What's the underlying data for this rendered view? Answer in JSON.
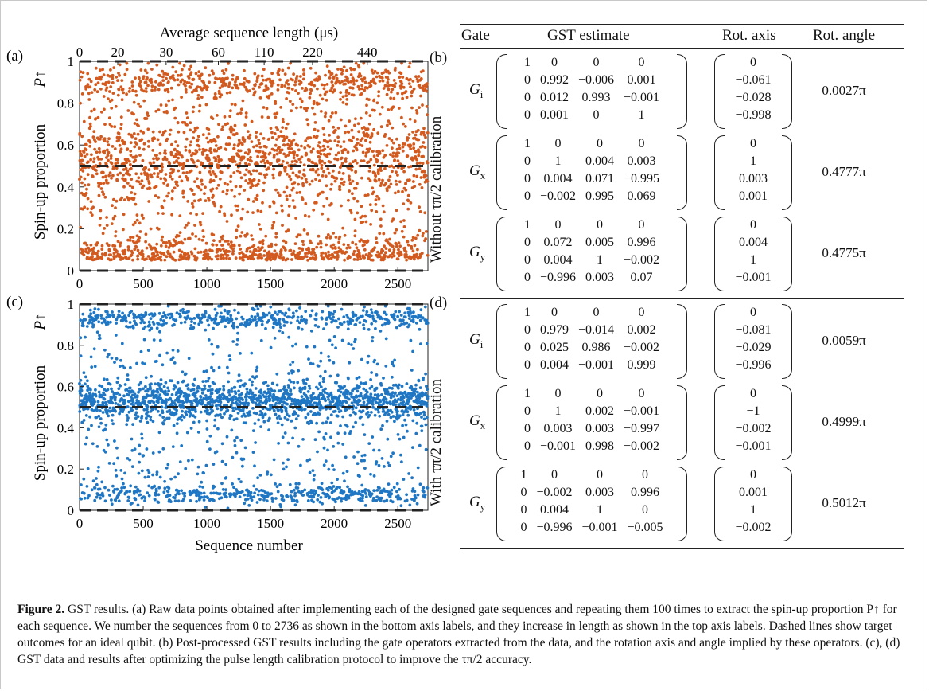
{
  "chart_data": [
    {
      "type": "scatter",
      "panel": "(a)",
      "xlabel_top": "Average sequence length (μs)",
      "top_ticks": [
        "0",
        "20",
        "30",
        "60",
        "110",
        "220",
        "440"
      ],
      "ylabel": "Spin-up proportion",
      "ylabel_symbol": "P↑",
      "xlim": [
        0,
        2736
      ],
      "ylim": [
        0,
        1
      ],
      "x_ticks": [
        0,
        500,
        1000,
        1500,
        2000,
        2500
      ],
      "y_ticks": [
        0,
        0.2,
        0.4,
        0.6,
        0.8,
        1
      ],
      "target_lines": [
        0,
        0.5,
        1
      ],
      "color": "#d35a1f",
      "n_points": 2736
    },
    {
      "type": "scatter",
      "panel": "(c)",
      "xlabel": "Sequence number",
      "ylabel": "Spin-up proportion",
      "ylabel_symbol": "P↑",
      "xlim": [
        0,
        2736
      ],
      "ylim": [
        0,
        1
      ],
      "x_ticks": [
        0,
        500,
        1000,
        1500,
        2000,
        2500
      ],
      "y_ticks": [
        0,
        0.2,
        0.4,
        0.6,
        0.8,
        1
      ],
      "target_lines": [
        0,
        0.5,
        1
      ],
      "color": "#1f77c4",
      "n_points": 2736
    }
  ],
  "gst": {
    "headers": {
      "gate": "Gate",
      "estimate": "GST estimate",
      "axis": "Rot. axis",
      "angle": "Rot. angle"
    },
    "panel_b": "(b)",
    "panel_d": "(d)",
    "side_b": "Without τπ/2 calibration",
    "side_d": "With τπ/2 calibration",
    "without": [
      {
        "name": "G",
        "sub": "i",
        "matrix": [
          [
            "1",
            "0",
            "0",
            "0"
          ],
          [
            "0",
            "0.992",
            "−0.006",
            "0.001"
          ],
          [
            "0",
            "0.012",
            "0.993",
            "−0.001"
          ],
          [
            "0",
            "0.001",
            "0",
            "1"
          ]
        ],
        "axis": [
          "0",
          "−0.061",
          "−0.028",
          "−0.998"
        ],
        "angle": "0.0027π"
      },
      {
        "name": "G",
        "sub": "x",
        "matrix": [
          [
            "1",
            "0",
            "0",
            "0"
          ],
          [
            "0",
            "1",
            "0.004",
            "0.003"
          ],
          [
            "0",
            "0.004",
            "0.071",
            "−0.995"
          ],
          [
            "0",
            "−0.002",
            "0.995",
            "0.069"
          ]
        ],
        "axis": [
          "0",
          "1",
          "0.003",
          "0.001"
        ],
        "angle": "0.4777π"
      },
      {
        "name": "G",
        "sub": "y",
        "matrix": [
          [
            "1",
            "0",
            "0",
            "0"
          ],
          [
            "0",
            "0.072",
            "0.005",
            "0.996"
          ],
          [
            "0",
            "0.004",
            "1",
            "−0.002"
          ],
          [
            "0",
            "−0.996",
            "0.003",
            "0.07"
          ]
        ],
        "axis": [
          "0",
          "0.004",
          "1",
          "−0.001"
        ],
        "angle": "0.4775π"
      }
    ],
    "with": [
      {
        "name": "G",
        "sub": "i",
        "matrix": [
          [
            "1",
            "0",
            "0",
            "0"
          ],
          [
            "0",
            "0.979",
            "−0.014",
            "0.002"
          ],
          [
            "0",
            "0.025",
            "0.986",
            "−0.002"
          ],
          [
            "0",
            "0.004",
            "−0.001",
            "0.999"
          ]
        ],
        "axis": [
          "0",
          "−0.081",
          "−0.029",
          "−0.996"
        ],
        "angle": "0.0059π"
      },
      {
        "name": "G",
        "sub": "x",
        "matrix": [
          [
            "1",
            "0",
            "0",
            "0"
          ],
          [
            "0",
            "1",
            "0.002",
            "−0.001"
          ],
          [
            "0",
            "0.003",
            "0.003",
            "−0.997"
          ],
          [
            "0",
            "−0.001",
            "0.998",
            "−0.002"
          ]
        ],
        "axis": [
          "0",
          "−1",
          "−0.002",
          "−0.001"
        ],
        "angle": "0.4999π"
      },
      {
        "name": "G",
        "sub": "y",
        "matrix": [
          [
            "1",
            "0",
            "0",
            "0"
          ],
          [
            "0",
            "−0.002",
            "0.003",
            "0.996"
          ],
          [
            "0",
            "0.004",
            "1",
            "0"
          ],
          [
            "0",
            "−0.996",
            "−0.001",
            "−0.005"
          ]
        ],
        "axis": [
          "0",
          "0.001",
          "1",
          "−0.002"
        ],
        "angle": "0.5012π"
      }
    ]
  },
  "caption": {
    "label": "Figure 2.",
    "text": " GST results. (a) Raw data points obtained after implementing each of the designed gate sequences and repeating them 100 times to extract the spin-up proportion P↑ for each sequence. We number the sequences from 0 to 2736 as shown in the bottom axis labels, and they increase in length as shown in the top axis labels. Dashed lines show target outcomes for an ideal qubit. (b) Post-processed GST results including the gate operators extracted from the data, and the rotation axis and angle implied by these operators. (c), (d) GST data and results after optimizing the pulse length calibration protocol to improve the τπ/2 accuracy."
  }
}
